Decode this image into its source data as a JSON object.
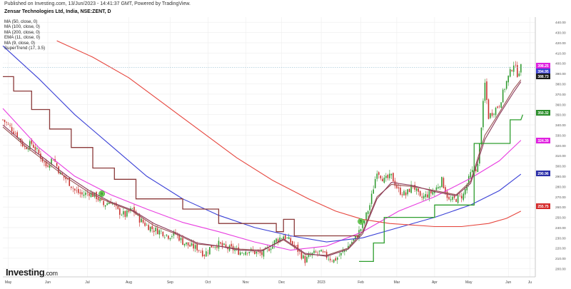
{
  "header": {
    "published": "Published on Investing.com, 13/Jun/2023 - 14:41:37 GMT, Powered by TradingView.",
    "symbol": "Zensar Technologies Ltd, India, NSE:ZENT, D"
  },
  "legend": {
    "items": [
      "MA (50, close, 0)",
      "MA (100, close, 0)",
      "MA (200, close, 0)",
      "EMA (11, close, 0)",
      "MA (9, close, 0)",
      "SuperTrend (17, 3.5)"
    ]
  },
  "brand": {
    "name": "Investing",
    "suffix": ".com"
  },
  "colors": {
    "up": "#2e9a2e",
    "down": "#c9302c",
    "ma50": "#e83de0",
    "ma100": "#3a40d6",
    "ma200": "#e6453d",
    "ema11": "#9a5454",
    "ma9": "#8c3a5a",
    "supertrend": "#2f9e2f",
    "supertrend_down": "#8b3a3a",
    "last_price": "#e020e0",
    "grid": "#eeeeee"
  },
  "chart_data": {
    "type": "candlestick",
    "title": "Zensar Technologies Ltd, India, NSE:ZENT, D",
    "ylim": [
      192,
      445
    ],
    "y_ticks": [
      200,
      210,
      220,
      230,
      240,
      250,
      260,
      270,
      280,
      290,
      300,
      310,
      320,
      330,
      340,
      350,
      360,
      370,
      380,
      390,
      400,
      410,
      420,
      430,
      440
    ],
    "x_labels": [
      {
        "label": "May",
        "t": 3
      },
      {
        "label": "Jun",
        "t": 25
      },
      {
        "label": "Jul",
        "t": 47
      },
      {
        "label": "Aug",
        "t": 70
      },
      {
        "label": "Sep",
        "t": 93
      },
      {
        "label": "Oct",
        "t": 114
      },
      {
        "label": "Nov",
        "t": 135
      },
      {
        "label": "Dec",
        "t": 155
      },
      {
        "label": "2023",
        "t": 177
      },
      {
        "label": "Feb",
        "t": 199
      },
      {
        "label": "Mar",
        "t": 219
      },
      {
        "label": "Apr",
        "t": 240
      },
      {
        "label": "May",
        "t": 259
      },
      {
        "label": "Jun",
        "t": 281
      },
      {
        "label": "Ju",
        "t": 293
      }
    ],
    "close_path": [
      [
        0,
        345
      ],
      [
        4,
        338
      ],
      [
        8,
        330
      ],
      [
        12,
        318
      ],
      [
        16,
        322
      ],
      [
        20,
        312
      ],
      [
        24,
        300
      ],
      [
        28,
        308
      ],
      [
        32,
        292
      ],
      [
        36,
        286
      ],
      [
        40,
        276
      ],
      [
        44,
        272
      ],
      [
        48,
        274
      ],
      [
        52,
        270
      ],
      [
        56,
        262
      ],
      [
        60,
        266
      ],
      [
        64,
        256
      ],
      [
        68,
        252
      ],
      [
        72,
        258
      ],
      [
        76,
        248
      ],
      [
        80,
        242
      ],
      [
        84,
        238
      ],
      [
        88,
        236
      ],
      [
        92,
        232
      ],
      [
        96,
        234
      ],
      [
        100,
        226
      ],
      [
        104,
        222
      ],
      [
        108,
        220
      ],
      [
        112,
        214
      ],
      [
        116,
        222
      ],
      [
        120,
        224
      ],
      [
        124,
        220
      ],
      [
        128,
        219
      ],
      [
        132,
        216
      ],
      [
        136,
        218
      ],
      [
        140,
        216
      ],
      [
        144,
        214
      ],
      [
        148,
        220
      ],
      [
        152,
        228
      ],
      [
        156,
        232
      ],
      [
        160,
        226
      ],
      [
        164,
        218
      ],
      [
        168,
        208
      ],
      [
        172,
        214
      ],
      [
        176,
        216
      ],
      [
        180,
        212
      ],
      [
        184,
        208
      ],
      [
        188,
        214
      ],
      [
        192,
        222
      ],
      [
        196,
        230
      ],
      [
        200,
        242
      ],
      [
        204,
        262
      ],
      [
        208,
        296
      ],
      [
        212,
        286
      ],
      [
        216,
        290
      ],
      [
        220,
        276
      ],
      [
        224,
        272
      ],
      [
        228,
        282
      ],
      [
        232,
        268
      ],
      [
        236,
        272
      ],
      [
        240,
        276
      ],
      [
        244,
        286
      ],
      [
        248,
        266
      ],
      [
        252,
        268
      ],
      [
        256,
        272
      ],
      [
        260,
        292
      ],
      [
        264,
        300
      ],
      [
        268,
        380
      ],
      [
        270,
        348
      ],
      [
        272,
        352
      ],
      [
        276,
        360
      ],
      [
        280,
        382
      ],
      [
        284,
        400
      ],
      [
        286,
        390
      ],
      [
        288,
        396
      ]
    ],
    "series": [
      {
        "name": "MA (50, close, 0)",
        "color": "#e83de0",
        "points": [
          [
            0,
            356
          ],
          [
            20,
            318
          ],
          [
            40,
            290
          ],
          [
            60,
            272
          ],
          [
            80,
            258
          ],
          [
            100,
            245
          ],
          [
            120,
            236
          ],
          [
            140,
            226
          ],
          [
            160,
            218
          ],
          [
            180,
            222
          ],
          [
            200,
            236
          ],
          [
            220,
            256
          ],
          [
            240,
            270
          ],
          [
            260,
            288
          ],
          [
            276,
            305
          ],
          [
            288,
            325
          ]
        ]
      },
      {
        "name": "MA (100, close, 0)",
        "color": "#3a40d6",
        "points": [
          [
            0,
            417
          ],
          [
            20,
            385
          ],
          [
            40,
            350
          ],
          [
            60,
            320
          ],
          [
            80,
            290
          ],
          [
            100,
            268
          ],
          [
            120,
            252
          ],
          [
            140,
            240
          ],
          [
            160,
            232
          ],
          [
            180,
            226
          ],
          [
            200,
            230
          ],
          [
            220,
            240
          ],
          [
            240,
            250
          ],
          [
            260,
            262
          ],
          [
            276,
            276
          ],
          [
            288,
            292
          ]
        ]
      },
      {
        "name": "MA (200, close, 0)",
        "color": "#e6453d",
        "points": [
          [
            30,
            422
          ],
          [
            50,
            406
          ],
          [
            70,
            386
          ],
          [
            90,
            360
          ],
          [
            110,
            334
          ],
          [
            130,
            308
          ],
          [
            150,
            286
          ],
          [
            170,
            268
          ],
          [
            185,
            256
          ],
          [
            200,
            248
          ],
          [
            215,
            244
          ],
          [
            240,
            241
          ],
          [
            255,
            241
          ],
          [
            270,
            244
          ],
          [
            280,
            249
          ],
          [
            288,
            256
          ]
        ]
      },
      {
        "name": "EMA (11, close, 0)",
        "color": "#9a5454",
        "points": [
          [
            0,
            338
          ],
          [
            12,
            320
          ],
          [
            24,
            304
          ],
          [
            36,
            288
          ],
          [
            48,
            274
          ],
          [
            60,
            264
          ],
          [
            72,
            256
          ],
          [
            84,
            242
          ],
          [
            96,
            234
          ],
          [
            108,
            224
          ],
          [
            120,
            222
          ],
          [
            132,
            219
          ],
          [
            144,
            218
          ],
          [
            156,
            228
          ],
          [
            168,
            214
          ],
          [
            180,
            213
          ],
          [
            192,
            220
          ],
          [
            200,
            236
          ],
          [
            208,
            270
          ],
          [
            216,
            282
          ],
          [
            228,
            280
          ],
          [
            240,
            276
          ],
          [
            252,
            272
          ],
          [
            260,
            285
          ],
          [
            268,
            330
          ],
          [
            276,
            352
          ],
          [
            284,
            375
          ],
          [
            288,
            384
          ]
        ]
      },
      {
        "name": "MA (9, close, 0)",
        "color": "#8c3a5a",
        "points": [
          [
            0,
            340
          ],
          [
            12,
            322
          ],
          [
            24,
            306
          ],
          [
            36,
            290
          ],
          [
            48,
            276
          ],
          [
            60,
            265
          ],
          [
            72,
            257
          ],
          [
            84,
            244
          ],
          [
            96,
            235
          ],
          [
            108,
            225
          ],
          [
            120,
            222
          ],
          [
            132,
            218
          ],
          [
            144,
            217
          ],
          [
            156,
            229
          ],
          [
            168,
            215
          ],
          [
            180,
            212
          ],
          [
            192,
            219
          ],
          [
            200,
            234
          ],
          [
            208,
            268
          ],
          [
            216,
            284
          ],
          [
            228,
            281
          ],
          [
            240,
            275
          ],
          [
            252,
            271
          ],
          [
            260,
            283
          ],
          [
            268,
            326
          ],
          [
            276,
            350
          ],
          [
            284,
            372
          ],
          [
            288,
            382
          ]
        ]
      }
    ],
    "supertrend": [
      {
        "color": "#8b3a3a",
        "points": [
          [
            0,
            387
          ],
          [
            6,
            387
          ],
          [
            6,
            373
          ],
          [
            16,
            373
          ],
          [
            16,
            355
          ],
          [
            26,
            355
          ],
          [
            26,
            336
          ],
          [
            38,
            336
          ],
          [
            38,
            318
          ],
          [
            50,
            318
          ],
          [
            50,
            298
          ],
          [
            62,
            298
          ],
          [
            62,
            287
          ],
          [
            74,
            287
          ],
          [
            74,
            268
          ],
          [
            100,
            268
          ],
          [
            100,
            258
          ],
          [
            120,
            258
          ],
          [
            120,
            244
          ],
          [
            152,
            244
          ],
          [
            152,
            236
          ],
          [
            156,
            236
          ],
          [
            156,
            248
          ],
          [
            162,
            248
          ],
          [
            162,
            232
          ],
          [
            198,
            232
          ]
        ]
      },
      {
        "color": "#2f9e2f",
        "points": [
          [
            198,
            207
          ],
          [
            206,
            207
          ],
          [
            206,
            225
          ],
          [
            212,
            225
          ],
          [
            212,
            250
          ],
          [
            240,
            250
          ],
          [
            240,
            262
          ],
          [
            262,
            262
          ],
          [
            262,
            322
          ],
          [
            282,
            322
          ],
          [
            282,
            345
          ],
          [
            288,
            345
          ],
          [
            289,
            350
          ]
        ]
      }
    ],
    "signals": [
      {
        "label": "B",
        "t": 55,
        "value": 273,
        "color": "#6fcf57"
      },
      {
        "label": "B",
        "t": 199,
        "value": 246,
        "color": "#6fcf57"
      }
    ],
    "last_price": 396.0,
    "price_labels": [
      {
        "value": "398.25",
        "color": "#e020e0"
      },
      {
        "value": "394.95",
        "color": "#3b3fd1"
      },
      {
        "value": "388.73",
        "color": "#1a1a1a"
      },
      {
        "value": "350.32",
        "color": "#2a8d2a"
      },
      {
        "value": "324.39",
        "color": "#e020e0"
      },
      {
        "value": "290.96",
        "color": "#2a2ea8"
      },
      {
        "value": "255.75",
        "color": "#d42a2a"
      }
    ]
  }
}
